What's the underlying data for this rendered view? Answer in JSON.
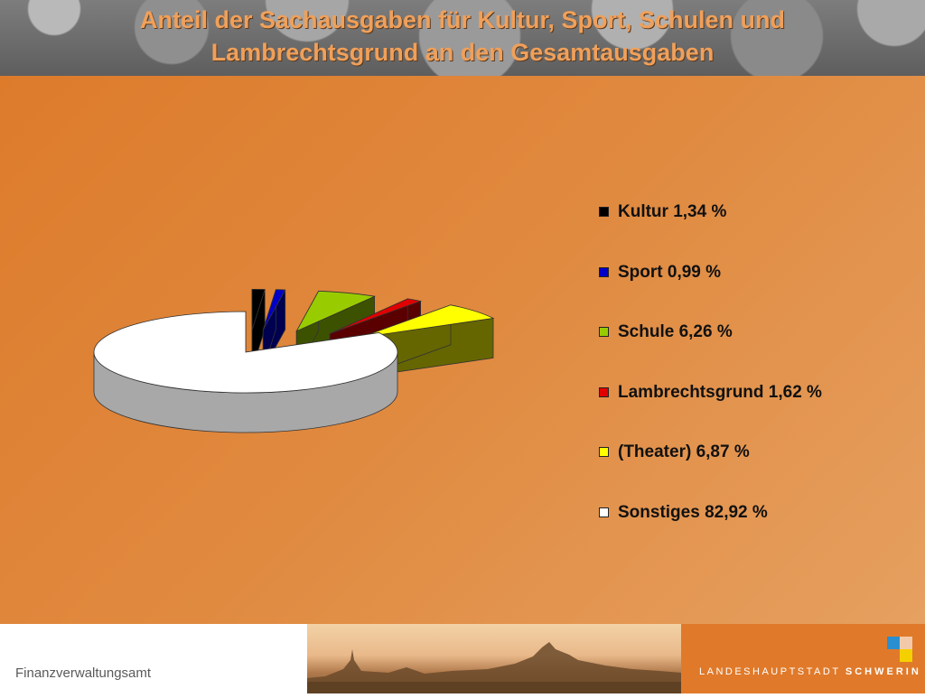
{
  "header": {
    "title_line1": "Anteil der Sachausgaben für Kultur, Sport, Schulen und",
    "title_line2": "Lambrechtsgrund an den Gesamtausgaben"
  },
  "chart_data": {
    "type": "pie",
    "title": "Anteil der Sachausgaben für Kultur, Sport, Schulen und Lambrechtsgrund an den Gesamtausgaben",
    "legend_position": "right",
    "slices": [
      {
        "name": "Kultur",
        "value": 1.34,
        "label": "Kultur 1,34 %",
        "color": "#000000"
      },
      {
        "name": "Sport",
        "value": 0.99,
        "label": "Sport 0,99 %",
        "color": "#0000c8"
      },
      {
        "name": "Schule",
        "value": 6.26,
        "label": "Schule 6,26 %",
        "color": "#99cc00"
      },
      {
        "name": "Lambrechtsgrund",
        "value": 1.62,
        "label": "Lambrechtsgrund 1,62 %",
        "color": "#e00000"
      },
      {
        "name": "(Theater)",
        "value": 6.87,
        "label": "(Theater) 6,87 %",
        "color": "#ffff00"
      },
      {
        "name": "Sonstiges",
        "value": 82.92,
        "label": "Sonstiges 82,92 %",
        "color": "#ffffff"
      }
    ]
  },
  "footer": {
    "department": "Finanzverwaltungsamt",
    "city_prefix": "LANDESHAUPTSTADT",
    "city_name": "SCHWERIN"
  },
  "colors": {
    "background": "#e08a40",
    "title": "#f0a05a",
    "footer_accent": "#e07a2a"
  }
}
